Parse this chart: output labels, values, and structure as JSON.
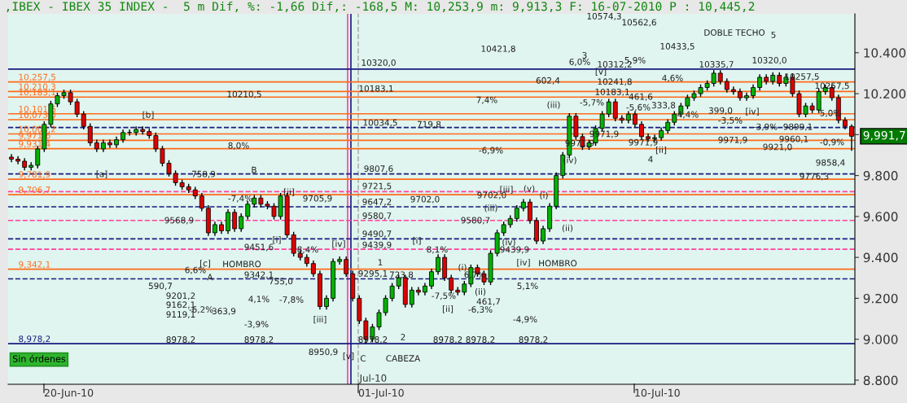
{
  "chart_data": {
    "type": "candlestick",
    "title": ",IBEX - IBEX 35 INDEX -  5 m Dif, %: -1,66 Dif,: -168,5 M: 10,253,9 m: 9,913,3 F: 16-07-2010 P : 10,445,2",
    "categories": [
      null,
      null,
      null,
      null,
      null,
      null,
      null,
      null,
      null,
      null,
      null,
      null,
      null,
      null,
      null,
      null,
      null,
      null,
      null,
      null,
      null,
      null,
      null,
      null,
      null,
      null,
      null,
      null,
      null,
      null,
      null,
      null,
      null,
      null,
      null,
      null,
      null,
      null,
      null,
      null,
      null,
      null,
      null,
      null,
      null,
      null,
      null,
      null,
      null,
      null,
      null,
      null,
      null,
      null,
      null,
      null,
      null,
      null,
      null,
      null,
      null,
      null,
      null,
      null,
      null,
      null,
      null,
      null,
      null,
      null,
      null,
      null,
      null,
      null,
      null,
      null,
      null,
      null,
      null,
      null,
      null,
      null,
      null,
      null,
      null,
      null,
      null,
      null,
      null,
      null,
      null,
      null,
      null,
      null,
      null,
      null,
      null,
      null,
      null,
      null,
      null,
      null,
      null,
      null,
      null,
      null,
      null,
      null,
      null,
      null,
      null,
      null,
      null,
      null,
      null,
      null,
      null,
      null,
      null,
      null,
      null,
      null,
      null,
      null,
      null,
      null,
      null,
      null,
      null
    ],
    "ohlc": [
      [
        9890,
        9905,
        9865,
        9880
      ],
      [
        9880,
        9895,
        9855,
        9870
      ],
      [
        9870,
        9885,
        9825,
        9840
      ],
      [
        9840,
        9865,
        9825,
        9850
      ],
      [
        9850,
        9945,
        9835,
        9930
      ],
      [
        9930,
        10065,
        9915,
        10050
      ],
      [
        10050,
        10165,
        10035,
        10150
      ],
      [
        10150,
        10205,
        10135,
        10190
      ],
      [
        10190,
        10220,
        10175,
        10205
      ],
      [
        10205,
        10220,
        10145,
        10160
      ],
      [
        10160,
        10175,
        10085,
        10100
      ],
      [
        10100,
        10115,
        10025,
        10040
      ],
      [
        10040,
        10055,
        9945,
        9960
      ],
      [
        9960,
        9975,
        9915,
        9930
      ],
      [
        9930,
        9975,
        9915,
        9960
      ],
      [
        9960,
        9975,
        9935,
        9950
      ],
      [
        9950,
        9990,
        9935,
        9975
      ],
      [
        9975,
        10025,
        9960,
        10010
      ],
      [
        10010,
        10025,
        9995,
        10010
      ],
      [
        10010,
        10040,
        9995,
        10025
      ],
      [
        10025,
        10040,
        10000,
        10015
      ],
      [
        10015,
        10030,
        9980,
        9995
      ],
      [
        9995,
        10010,
        9915,
        9930
      ],
      [
        9930,
        9945,
        9845,
        9860
      ],
      [
        9860,
        9875,
        9795,
        9810
      ],
      [
        9810,
        9825,
        9750,
        9765
      ],
      [
        9765,
        9780,
        9730,
        9745
      ],
      [
        9745,
        9760,
        9715,
        9730
      ],
      [
        9730,
        9745,
        9685,
        9700
      ],
      [
        9700,
        9715,
        9625,
        9640
      ],
      [
        9640,
        9655,
        9505,
        9520
      ],
      [
        9520,
        9575,
        9505,
        9560
      ],
      [
        9560,
        9575,
        9515,
        9530
      ],
      [
        9530,
        9635,
        9515,
        9620
      ],
      [
        9620,
        9635,
        9525,
        9540
      ],
      [
        9540,
        9615,
        9525,
        9600
      ],
      [
        9600,
        9675,
        9585,
        9660
      ],
      [
        9660,
        9705,
        9645,
        9690
      ],
      [
        9690,
        9705,
        9645,
        9660
      ],
      [
        9660,
        9675,
        9635,
        9650
      ],
      [
        9650,
        9665,
        9585,
        9600
      ],
      [
        9600,
        9715,
        9585,
        9700
      ],
      [
        9700,
        9715,
        9495,
        9510
      ],
      [
        9510,
        9525,
        9405,
        9420
      ],
      [
        9420,
        9435,
        9385,
        9400
      ],
      [
        9400,
        9415,
        9355,
        9370
      ],
      [
        9370,
        9385,
        9305,
        9320
      ],
      [
        9320,
        9335,
        9145,
        9160
      ],
      [
        9160,
        9215,
        9145,
        9200
      ],
      [
        9200,
        9395,
        9185,
        9380
      ],
      [
        9380,
        9405,
        9365,
        9390
      ],
      [
        9390,
        9405,
        9305,
        9320
      ],
      [
        9320,
        9335,
        9185,
        9200
      ],
      [
        9200,
        9215,
        9075,
        9090
      ],
      [
        9090,
        9105,
        8978.2,
        9000
      ],
      [
        9000,
        9075,
        8985,
        9060
      ],
      [
        9060,
        9145,
        9045,
        9130
      ],
      [
        9130,
        9215,
        9115,
        9200
      ],
      [
        9200,
        9275,
        9185,
        9260
      ],
      [
        9260,
        9315,
        9245,
        9300
      ],
      [
        9300,
        9315,
        9155,
        9170
      ],
      [
        9170,
        9255,
        9155,
        9240
      ],
      [
        9240,
        9255,
        9215,
        9230
      ],
      [
        9230,
        9275,
        9215,
        9260
      ],
      [
        9260,
        9345,
        9245,
        9330
      ],
      [
        9330,
        9415,
        9315,
        9400
      ],
      [
        9400,
        9415,
        9285,
        9300
      ],
      [
        9300,
        9315,
        9225,
        9240
      ],
      [
        9240,
        9255,
        9215,
        9230
      ],
      [
        9230,
        9285,
        9215,
        9270
      ],
      [
        9270,
        9365,
        9255,
        9350
      ],
      [
        9350,
        9365,
        9305,
        9320
      ],
      [
        9320,
        9335,
        9265,
        9280
      ],
      [
        9280,
        9435,
        9265,
        9420
      ],
      [
        9420,
        9535,
        9405,
        9520
      ],
      [
        9520,
        9575,
        9505,
        9560
      ],
      [
        9560,
        9605,
        9545,
        9590
      ],
      [
        9590,
        9655,
        9575,
        9640
      ],
      [
        9640,
        9685,
        9625,
        9670
      ],
      [
        9670,
        9685,
        9565,
        9580
      ],
      [
        9580,
        9595,
        9465,
        9480
      ],
      [
        9480,
        9555,
        9465,
        9540
      ],
      [
        9540,
        9665,
        9525,
        9650
      ],
      [
        9650,
        9815,
        9635,
        9800
      ],
      [
        9800,
        9915,
        9785,
        9900
      ],
      [
        9900,
        10105,
        9885,
        10090
      ],
      [
        10090,
        10105,
        9975,
        9990
      ],
      [
        9990,
        10005,
        9925,
        9940
      ],
      [
        9940,
        9975,
        9925,
        9960
      ],
      [
        9960,
        10045,
        9945,
        10030
      ],
      [
        10030,
        10115,
        10015,
        10100
      ],
      [
        10100,
        10175,
        10085,
        10160
      ],
      [
        10160,
        10175,
        10065,
        10080
      ],
      [
        10080,
        10095,
        10055,
        10070
      ],
      [
        10070,
        10115,
        10055,
        10100
      ],
      [
        10100,
        10115,
        10035,
        10050
      ],
      [
        10050,
        10065,
        9975,
        9990
      ],
      [
        9990,
        10005,
        9965,
        9980
      ],
      [
        9980,
        10000,
        9965,
        9985
      ],
      [
        9985,
        10035,
        9970,
        10020
      ],
      [
        10020,
        10075,
        10005,
        10060
      ],
      [
        10060,
        10115,
        10045,
        10100
      ],
      [
        10100,
        10155,
        10085,
        10140
      ],
      [
        10140,
        10195,
        10125,
        10180
      ],
      [
        10180,
        10215,
        10165,
        10200
      ],
      [
        10200,
        10245,
        10185,
        10230
      ],
      [
        10230,
        10265,
        10215,
        10250
      ],
      [
        10250,
        10315,
        10235,
        10300
      ],
      [
        10300,
        10315,
        10245,
        10260
      ],
      [
        10260,
        10275,
        10205,
        10220
      ],
      [
        10220,
        10235,
        10195,
        10210
      ],
      [
        10210,
        10225,
        10165,
        10180
      ],
      [
        10180,
        10205,
        10165,
        10190
      ],
      [
        10190,
        10245,
        10175,
        10230
      ],
      [
        10230,
        10295,
        10215,
        10280
      ],
      [
        10280,
        10295,
        10245,
        10260
      ],
      [
        10260,
        10305,
        10245,
        10290
      ],
      [
        10290,
        10305,
        10235,
        10250
      ],
      [
        10250,
        10295,
        10235,
        10280
      ],
      [
        10280,
        10295,
        10185,
        10200
      ],
      [
        10200,
        10215,
        10085,
        10100
      ],
      [
        10100,
        10155,
        10085,
        10140
      ],
      [
        10140,
        10155,
        10105,
        10120
      ],
      [
        10120,
        10225,
        10105,
        10210
      ],
      [
        10210,
        10245,
        10195,
        10230
      ],
      [
        10230,
        10245,
        10165,
        10180
      ],
      [
        10180,
        10195,
        10055,
        10070
      ],
      [
        10070,
        10085,
        10025,
        10040
      ],
      [
        10040,
        10050,
        9921,
        9991.7
      ]
    ],
    "ylim": [
      8780,
      10590
    ],
    "yticks": [
      {
        "value": 8800,
        "label": "8.800"
      },
      {
        "value": 9000,
        "label": "9.000"
      },
      {
        "value": 9200,
        "label": "9.200"
      },
      {
        "value": 9400,
        "label": "9.400"
      },
      {
        "value": 9600,
        "label": "9.600"
      },
      {
        "value": 9800,
        "label": "9.800"
      },
      {
        "value": 10000,
        "label": null
      },
      {
        "value": 10200,
        "label": "10.200"
      },
      {
        "value": 10400,
        "label": "10.400"
      }
    ],
    "grid": false,
    "legend": false,
    "ref_lines": [
      {
        "axis": "y",
        "value": 10257.5,
        "label": "10,257,5",
        "color": "#ff6a1a",
        "line_style": "solid"
      },
      {
        "axis": "y",
        "value": 10210.3,
        "label": "10,210,3",
        "color": "#ff6a1a",
        "line_style": "solid"
      },
      {
        "axis": "y",
        "value": 10183.1,
        "label": "10,183,1",
        "color": "#ff6a1a",
        "line_style": "solid"
      },
      {
        "axis": "y",
        "value": 10101.6,
        "label": "10,101,6",
        "color": "#ff6a1a",
        "line_style": "solid"
      },
      {
        "axis": "y",
        "value": 10073.0,
        "label": "10,073,0",
        "color": "#ff6a1a",
        "line_style": "solid"
      },
      {
        "axis": "y",
        "value": 10003.2,
        "label": "10,003,2",
        "color": "#ff6a1a",
        "line_style": "solid"
      },
      {
        "axis": "y",
        "value": 9971.6,
        "label": "9,971,6",
        "color": "#ff6a1a",
        "line_style": "solid"
      },
      {
        "axis": "y",
        "value": 9931.4,
        "label": "9,931,4",
        "color": "#ff6a1a",
        "line_style": "solid"
      },
      {
        "axis": "y",
        "value": 9781.9,
        "label": "9,781,9",
        "color": "#ff6a1a",
        "line_style": "solid"
      },
      {
        "axis": "y",
        "value": 9706.7,
        "label": "9,706,7",
        "color": "#ff6a1a",
        "line_style": "solid"
      },
      {
        "axis": "y",
        "value": 9342.1,
        "label": "9,342,1",
        "color": "#ff6a1a",
        "line_style": "solid"
      },
      {
        "axis": "y",
        "value": 8978.2,
        "label": "8,978,2",
        "color": "#1a1a80",
        "line_style": "solid"
      },
      {
        "axis": "y",
        "value": 10320.0,
        "color": "#1a1a80",
        "line_style": "solid"
      },
      {
        "axis": "y",
        "value": 10034.5,
        "color": "#1a1a80",
        "line_style": "dashed"
      },
      {
        "axis": "y",
        "value": 9807.6,
        "color": "#1a1a80",
        "line_style": "dashed"
      },
      {
        "axis": "y",
        "value": 9647.2,
        "color": "#1a1a80",
        "line_style": "dashed"
      },
      {
        "axis": "y",
        "value": 9490.7,
        "color": "#1a1a80",
        "line_style": "dashed"
      },
      {
        "axis": "y",
        "value": 9295.1,
        "color": "#1a1a80",
        "line_style": "dashed"
      },
      {
        "axis": "y",
        "value": 9721.5,
        "color": "#ff40a0",
        "line_style": "dashed"
      },
      {
        "axis": "y",
        "value": 9580.7,
        "color": "#ff40a0",
        "line_style": "dashed"
      },
      {
        "axis": "y",
        "value": 9439.9,
        "color": "#ff40a0",
        "line_style": "dashed"
      }
    ],
    "annotations": [
      "Sin órdenes",
      "9,991,7",
      "20-Jun-10",
      "01-Jul-10",
      "10-Jul-10",
      "Jul-10",
      "10320,0",
      "10183,1",
      "10034,5",
      "9807,6",
      "9721,5",
      "9647,2",
      "9580,7",
      "9490,7",
      "9439,9",
      "9295,1",
      "[a]",
      "[b]",
      "758,9",
      "10210,5",
      "8,0%",
      "B",
      "-7,4%",
      "[ii]",
      "9705,9",
      "9568,9",
      "9451,6",
      "[i]",
      "8,4%",
      "[c]",
      "A",
      "HOMBRO",
      "6,6%",
      "590,7",
      "9201,2",
      "9162,1",
      "9119,1",
      "-6,2%",
      "363,9",
      "9342,1",
      "755,0",
      "4,1%",
      "-3,9%",
      "8978,2",
      "8978,2",
      "-7,8%",
      "[iii]",
      "8950,9",
      "[iv]",
      "[v]",
      "C",
      "CABEZA",
      "1",
      "2",
      "8978,2",
      "723,8",
      "[i]",
      "8,1%",
      "-7,5%",
      "[ii]",
      "8978,2",
      "9702,0",
      "10421,8",
      "7,4%",
      "719,8",
      "9702,0",
      "-6,9%",
      "(i)",
      "6,7%",
      "(ii)",
      "461,7",
      "-6,3%",
      "9580,7",
      "8978,2",
      "9439,9",
      "[iv]",
      "HOMBRO",
      "5,1%",
      "-4,9%",
      "8978,2",
      "(iii)",
      "[iii]",
      "(v)",
      "(i)",
      "(ii)",
      "(iv)",
      "(iii)",
      "(iv)",
      "3",
      "6,0%",
      "10312,2",
      "5,9%",
      "[v]",
      "602,4",
      "10241,8",
      "10183,1",
      "-5,7%",
      "461,6",
      "-5,6%",
      "10574,3",
      "10562,6",
      "9971,9",
      "9971,9",
      "9971,9",
      "4",
      "10433,5",
      "4,6%",
      "333,8",
      "4,4%",
      "[ii]",
      "-3,5%",
      "9971,9",
      "10335,7",
      "DOBLE TECHO",
      "5",
      "10320,0",
      "399,0",
      "[iv]",
      "10257,5",
      "10257,5",
      "5,0%",
      "-3,9%",
      "9899,1",
      "9960,1",
      "-0,9%",
      "9921,0",
      "9858,4",
      "9776,3"
    ]
  }
}
